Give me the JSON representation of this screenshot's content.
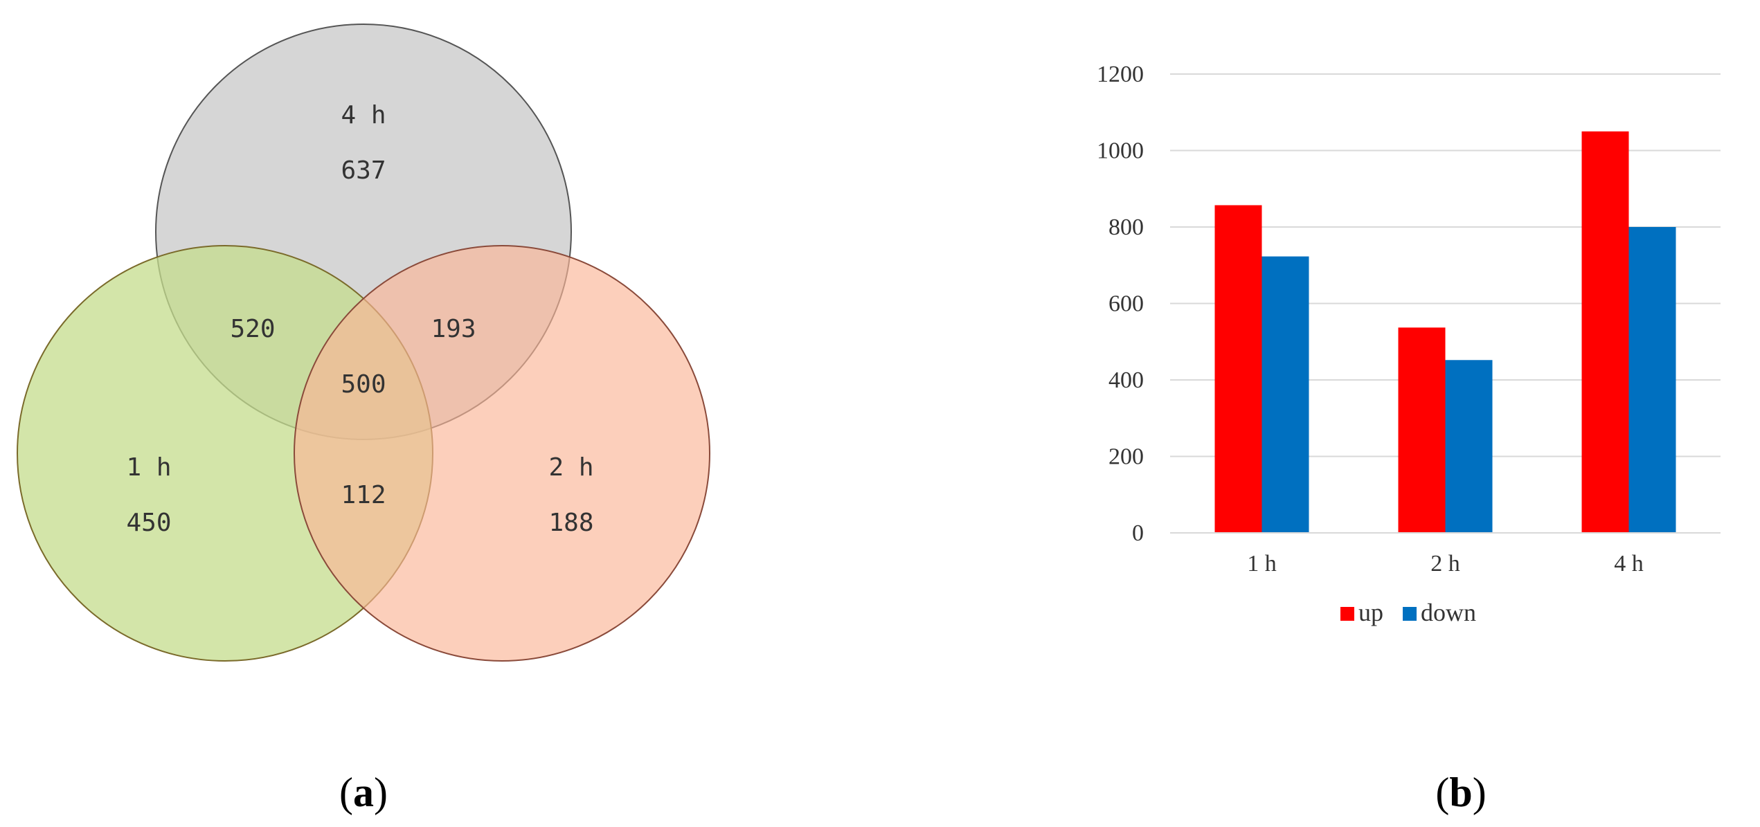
{
  "venn": {
    "sets": [
      {
        "name": "4 h",
        "value": "637",
        "color": "#c8c8c8"
      },
      {
        "name": "1 h",
        "value": "450",
        "color": "#c4dc8c"
      },
      {
        "name": "2 h",
        "value": "188",
        "color": "#fbb597"
      }
    ],
    "intersections": {
      "h1_h4": "520",
      "h2_h4": "193",
      "all": "500",
      "h1_h2": "112"
    }
  },
  "chart_data": {
    "type": "bar",
    "categories": [
      "1 h",
      "2 h",
      "4 h"
    ],
    "series": [
      {
        "name": "up",
        "values": [
          857,
          537,
          1050
        ],
        "color": "#ff0000"
      },
      {
        "name": "down",
        "values": [
          723,
          452,
          800
        ],
        "color": "#0070c0"
      }
    ],
    "ylim": [
      0,
      1200
    ],
    "yticks": [
      "0",
      "200",
      "400",
      "600",
      "800",
      "1000",
      "1200"
    ],
    "grid": true,
    "legend": "bottom"
  },
  "panels": {
    "a": {
      "open": "(",
      "letter": "a",
      "close": ")"
    },
    "b": {
      "open": "(",
      "letter": "b",
      "close": ")"
    }
  }
}
